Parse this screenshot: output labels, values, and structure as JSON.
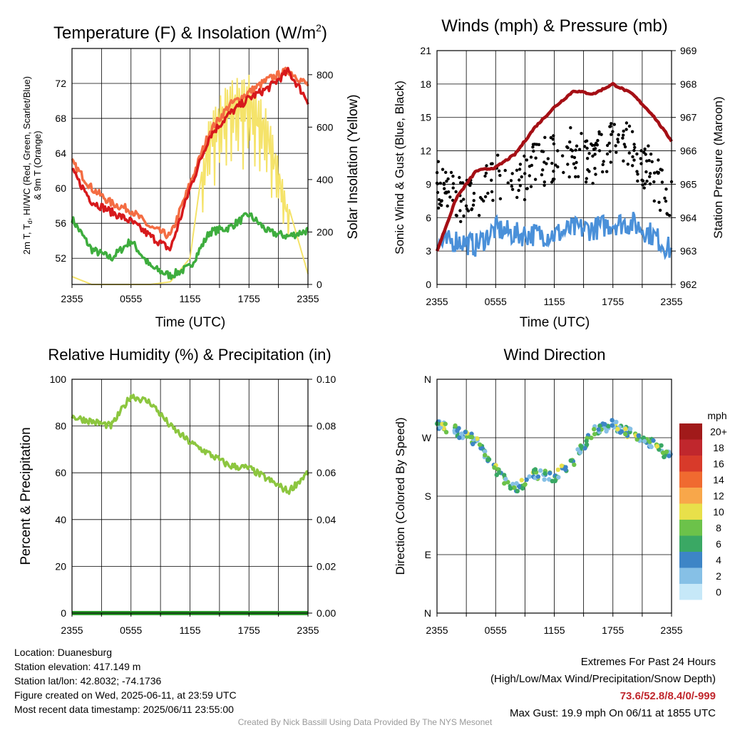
{
  "panels": {
    "temp": {
      "title": "Temperature (F) & Insolation (W/m²)",
      "ylabel_left": [
        "2m T, T",
        "d",
        ", HI/WC (Red, Green, Scarlet/Blue)",
        "& 9m T (Orange)"
      ],
      "ylabel_right": "Solar Insolation (Yellow)",
      "xlabel": "Time (UTC)",
      "yticks_left": [
        "52",
        "56",
        "60",
        "64",
        "68",
        "72"
      ],
      "yticks_right": [
        "0",
        "200",
        "400",
        "600",
        "800"
      ]
    },
    "winds": {
      "title": "Winds (mph) & Pressure (mb)",
      "ylabel_left": "Sonic Wind & Gust (Blue, Black)",
      "ylabel_right": "Station Pressure (Maroon)",
      "xlabel": "Time (UTC)",
      "yticks_left": [
        "0",
        "3",
        "6",
        "9",
        "12",
        "15",
        "18",
        "21"
      ],
      "yticks_right": [
        "962",
        "963",
        "964",
        "965",
        "966",
        "967",
        "968",
        "969"
      ]
    },
    "rh": {
      "title": "Relative Humidity (%) & Precipitation (in)",
      "ylabel_left": "Percent & Precipitation",
      "yticks_left": [
        "0",
        "20",
        "40",
        "60",
        "80",
        "100"
      ],
      "yticks_right": [
        "0.00",
        "0.02",
        "0.04",
        "0.06",
        "0.08",
        "0.10"
      ]
    },
    "dir": {
      "title": "Wind Direction",
      "ylabel_left": "Direction (Colored By Speed)",
      "yticks_left": [
        "N",
        "E",
        "S",
        "W",
        "N"
      ],
      "legend_title": "mph",
      "legend_labels": [
        "20+",
        "18",
        "16",
        "14",
        "12",
        "10",
        "8",
        "6",
        "4",
        "2",
        "0"
      ]
    }
  },
  "xticks": [
    "2355",
    "0555",
    "1155",
    "1755",
    "2355"
  ],
  "chart_data": [
    {
      "type": "line",
      "title": "Temperature (F) & Insolation (W/m2)",
      "xlabel": "Time (UTC)",
      "x": [
        "2355",
        "0155",
        "0355",
        "0555",
        "0755",
        "0955",
        "1155",
        "1355",
        "1555",
        "1755",
        "1955",
        "2155",
        "2355"
      ],
      "ylim": [
        49,
        76
      ],
      "y2lim": [
        0,
        900
      ],
      "series": [
        {
          "name": "2m T",
          "color": "#d7191c",
          "values": [
            62,
            58.5,
            57.3,
            56.2,
            54.5,
            53,
            60,
            66,
            68.5,
            70.3,
            71.5,
            73.4,
            70
          ]
        },
        {
          "name": "9m T",
          "color": "#f46d43",
          "values": [
            63,
            60,
            58.3,
            57.5,
            55.5,
            54.5,
            60.5,
            66.5,
            69.5,
            71,
            72.5,
            73.5,
            71.8
          ]
        },
        {
          "name": "Td",
          "color": "#3ead3e",
          "values": [
            56.5,
            53,
            52,
            54,
            51,
            50,
            51,
            55,
            55.5,
            57,
            55,
            54.5,
            55.2
          ]
        },
        {
          "name": "Insolation",
          "axis": "right",
          "color": "#f5e36a",
          "values": [
            30,
            0,
            0,
            0,
            0,
            10,
            100,
            650,
            780,
            800,
            650,
            300,
            40
          ]
        }
      ]
    },
    {
      "type": "line",
      "title": "Winds (mph) & Pressure (mb)",
      "xlabel": "Time (UTC)",
      "x": [
        "2355",
        "0155",
        "0355",
        "0555",
        "0755",
        "0955",
        "1155",
        "1355",
        "1555",
        "1755",
        "1955",
        "2155",
        "2355"
      ],
      "ylim": [
        0,
        21
      ],
      "y2lim": [
        962,
        969
      ],
      "series": [
        {
          "name": "Sonic Wind",
          "color": "#4a90d9",
          "values": [
            3.5,
            4,
            3.5,
            5,
            4.5,
            4.5,
            4.5,
            5,
            5,
            5.5,
            5.5,
            4.5,
            3
          ]
        },
        {
          "name": "Gust",
          "color": "#000000",
          "values": [
            9,
            8,
            7,
            10,
            9,
            10.5,
            11.5,
            12,
            11,
            13,
            12,
            10,
            7
          ]
        },
        {
          "name": "Station Pressure",
          "axis": "right",
          "color": "#a50f15",
          "values": [
            963,
            964.6,
            965.4,
            965.5,
            965.9,
            966.7,
            967.3,
            967.8,
            967.7,
            968,
            967.7,
            967.1,
            966.3
          ]
        }
      ]
    },
    {
      "type": "line",
      "title": "Relative Humidity (%) & Precipitation (in)",
      "ylabel": "Percent & Precipitation",
      "x": [
        "2355",
        "0155",
        "0355",
        "0555",
        "0755",
        "0955",
        "1155",
        "1355",
        "1555",
        "1755",
        "1955",
        "2155",
        "2355"
      ],
      "ylim": [
        0,
        100
      ],
      "y2lim": [
        0,
        0.1
      ],
      "series": [
        {
          "name": "RH",
          "color": "#8cc63f",
          "values": [
            84,
            82,
            80,
            93,
            90,
            80,
            73,
            68,
            63,
            62,
            57,
            52,
            60
          ]
        },
        {
          "name": "Precipitation",
          "axis": "right",
          "color": "#2e9c2e",
          "values": [
            0,
            0,
            0,
            0,
            0,
            0,
            0,
            0,
            0,
            0,
            0,
            0,
            0
          ]
        }
      ]
    },
    {
      "type": "scatter",
      "title": "Wind Direction",
      "ylabel": "Direction (Colored By Speed)",
      "x": [
        "2355",
        "0155",
        "0355",
        "0555",
        "0755",
        "0955",
        "1155",
        "1355",
        "1555",
        "1755",
        "1955",
        "2155",
        "2355"
      ],
      "yticks": [
        "N",
        "E",
        "S",
        "W",
        "N"
      ],
      "ylim": [
        0,
        360
      ],
      "series": [
        {
          "name": "Direction (deg)",
          "values": [
            290,
            280,
            265,
            220,
            190,
            215,
            210,
            235,
            280,
            290,
            275,
            260,
            240
          ]
        }
      ],
      "colorbar": {
        "title": "mph",
        "labels": [
          "0",
          "2",
          "4",
          "6",
          "8",
          "10",
          "12",
          "14",
          "16",
          "18",
          "20+"
        ],
        "colors": [
          "#c6e8f8",
          "#86c0e6",
          "#3d85c6",
          "#3aa864",
          "#6cc24a",
          "#e8e04a",
          "#f8a74a",
          "#f06a30",
          "#d83a2a",
          "#c0272d",
          "#a11a1a"
        ]
      }
    }
  ],
  "info": {
    "location": "Location: Duanesburg",
    "elevation": "Station elevation: 417.149 m",
    "latlon": "Station lat/lon: 42.8032; -74.1736",
    "created": "Figure created on Wed, 2025-06-11, at 23:59 UTC",
    "recent": "Most recent data timestamp: 2025/06/11 23:55:00"
  },
  "extremes": {
    "title": "Extremes For Past 24 Hours",
    "subtitle": "(High/Low/Max Wind/Precipitation/Snow Depth)",
    "values": "73.6/52.8/8.4/0/-999",
    "gust": "Max Gust: 19.9 mph On 06/11 at 1855 UTC"
  },
  "credit": "Created By Nick Bassill Using Data Provided By The NYS Mesonet"
}
